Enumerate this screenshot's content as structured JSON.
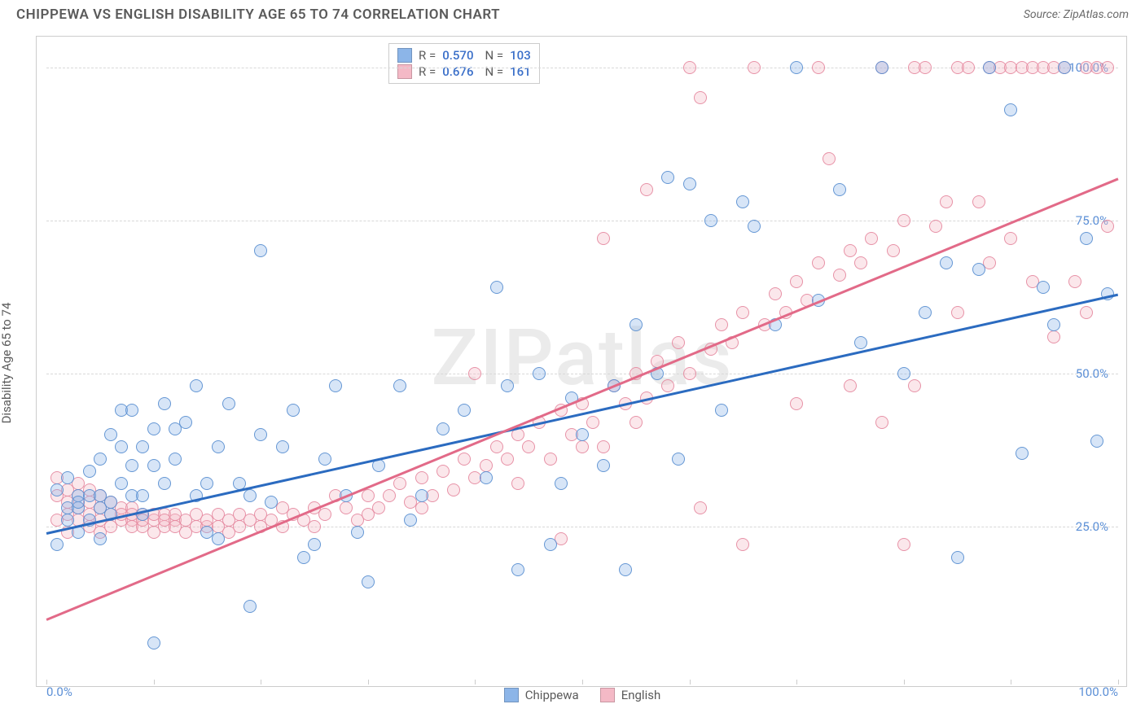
{
  "header": {
    "title": "CHIPPEWA VS ENGLISH DISABILITY AGE 65 TO 74 CORRELATION CHART",
    "source": "Source: ZipAtlas.com"
  },
  "watermark": "ZIPatlas",
  "chart": {
    "type": "scatter",
    "ylabel": "Disability Age 65 to 74",
    "background_color": "#ffffff",
    "border_color": "#cccccc",
    "grid_color": "#d8d8d8",
    "label_fontsize": 15,
    "title_fontsize": 17,
    "xlim": [
      0,
      100
    ],
    "ylim": [
      0,
      105
    ],
    "xtick_label_left": "0.0%",
    "xtick_label_right": "100.0%",
    "xtick_positions": [
      0,
      10,
      20,
      30,
      40,
      50,
      60,
      70,
      80,
      90,
      100
    ],
    "ytick_labels": [
      {
        "v": 25,
        "t": "25.0%"
      },
      {
        "v": 50,
        "t": "50.0%"
      },
      {
        "v": 75,
        "t": "75.0%"
      },
      {
        "v": 100,
        "t": "100.0%"
      }
    ],
    "marker_radius": 8,
    "marker_fill_opacity": 0.35,
    "marker_stroke_opacity": 0.9,
    "series": [
      {
        "name": "Chippewa",
        "color": "#8cb5e8",
        "stroke": "#5a8fd0",
        "R": "0.570",
        "N": "103",
        "trendline": {
          "x1": 0,
          "y1": 24,
          "x2": 100,
          "y2": 63,
          "color": "#2b6bc0",
          "width": 2.5
        },
        "points": [
          [
            1,
            22
          ],
          [
            1,
            31
          ],
          [
            2,
            26
          ],
          [
            2,
            33
          ],
          [
            2,
            28
          ],
          [
            3,
            24
          ],
          [
            3,
            30
          ],
          [
            3,
            28
          ],
          [
            3,
            29
          ],
          [
            4,
            30
          ],
          [
            4,
            26
          ],
          [
            4,
            34
          ],
          [
            5,
            30
          ],
          [
            5,
            23
          ],
          [
            5,
            28
          ],
          [
            5,
            36
          ],
          [
            6,
            27
          ],
          [
            6,
            29
          ],
          [
            6,
            40
          ],
          [
            7,
            44
          ],
          [
            7,
            32
          ],
          [
            7,
            38
          ],
          [
            8,
            30
          ],
          [
            8,
            35
          ],
          [
            8,
            44
          ],
          [
            9,
            38
          ],
          [
            9,
            30
          ],
          [
            9,
            27
          ],
          [
            10,
            35
          ],
          [
            10,
            41
          ],
          [
            10,
            6
          ],
          [
            11,
            32
          ],
          [
            11,
            45
          ],
          [
            12,
            36
          ],
          [
            12,
            41
          ],
          [
            13,
            42
          ],
          [
            14,
            30
          ],
          [
            14,
            48
          ],
          [
            15,
            32
          ],
          [
            15,
            24
          ],
          [
            16,
            38
          ],
          [
            16,
            23
          ],
          [
            17,
            45
          ],
          [
            18,
            32
          ],
          [
            19,
            12
          ],
          [
            19,
            30
          ],
          [
            20,
            70
          ],
          [
            20,
            40
          ],
          [
            21,
            29
          ],
          [
            22,
            38
          ],
          [
            23,
            44
          ],
          [
            24,
            20
          ],
          [
            25,
            22
          ],
          [
            26,
            36
          ],
          [
            27,
            48
          ],
          [
            28,
            30
          ],
          [
            29,
            24
          ],
          [
            30,
            16
          ],
          [
            31,
            35
          ],
          [
            33,
            48
          ],
          [
            34,
            26
          ],
          [
            35,
            30
          ],
          [
            37,
            41
          ],
          [
            39,
            44
          ],
          [
            41,
            33
          ],
          [
            42,
            64
          ],
          [
            43,
            48
          ],
          [
            44,
            18
          ],
          [
            46,
            50
          ],
          [
            47,
            22
          ],
          [
            48,
            32
          ],
          [
            49,
            46
          ],
          [
            50,
            40
          ],
          [
            52,
            35
          ],
          [
            53,
            48
          ],
          [
            54,
            18
          ],
          [
            55,
            58
          ],
          [
            57,
            50
          ],
          [
            58,
            82
          ],
          [
            59,
            36
          ],
          [
            60,
            81
          ],
          [
            62,
            75
          ],
          [
            63,
            44
          ],
          [
            65,
            78
          ],
          [
            66,
            74
          ],
          [
            68,
            58
          ],
          [
            70,
            100
          ],
          [
            72,
            62
          ],
          [
            74,
            80
          ],
          [
            76,
            55
          ],
          [
            78,
            100
          ],
          [
            80,
            50
          ],
          [
            82,
            60
          ],
          [
            84,
            68
          ],
          [
            85,
            20
          ],
          [
            87,
            67
          ],
          [
            88,
            100
          ],
          [
            90,
            93
          ],
          [
            91,
            37
          ],
          [
            93,
            64
          ],
          [
            94,
            58
          ],
          [
            95,
            100
          ],
          [
            97,
            72
          ],
          [
            98,
            39
          ],
          [
            99,
            63
          ]
        ]
      },
      {
        "name": "English",
        "color": "#f4b9c6",
        "stroke": "#e68aa0",
        "R": "0.676",
        "N": "161",
        "trendline": {
          "x1": 0,
          "y1": 10,
          "x2": 100,
          "y2": 82,
          "color": "#e26a88",
          "width": 2.5
        },
        "points": [
          [
            1,
            30
          ],
          [
            1,
            26
          ],
          [
            1,
            33
          ],
          [
            2,
            27
          ],
          [
            2,
            31
          ],
          [
            2,
            24
          ],
          [
            2,
            29
          ],
          [
            3,
            28
          ],
          [
            3,
            32
          ],
          [
            3,
            26
          ],
          [
            3,
            30
          ],
          [
            4,
            27
          ],
          [
            4,
            29
          ],
          [
            4,
            25
          ],
          [
            4,
            31
          ],
          [
            5,
            28
          ],
          [
            5,
            26
          ],
          [
            5,
            30
          ],
          [
            5,
            24
          ],
          [
            6,
            27
          ],
          [
            6,
            29
          ],
          [
            6,
            25
          ],
          [
            7,
            26
          ],
          [
            7,
            28
          ],
          [
            7,
            27
          ],
          [
            8,
            26
          ],
          [
            8,
            28
          ],
          [
            8,
            25
          ],
          [
            8,
            27
          ],
          [
            9,
            25
          ],
          [
            9,
            27
          ],
          [
            9,
            26
          ],
          [
            10,
            26
          ],
          [
            10,
            24
          ],
          [
            10,
            27
          ],
          [
            11,
            25
          ],
          [
            11,
            27
          ],
          [
            11,
            26
          ],
          [
            12,
            26
          ],
          [
            12,
            25
          ],
          [
            12,
            27
          ],
          [
            13,
            24
          ],
          [
            13,
            26
          ],
          [
            14,
            25
          ],
          [
            14,
            27
          ],
          [
            15,
            25
          ],
          [
            15,
            26
          ],
          [
            16,
            25
          ],
          [
            16,
            27
          ],
          [
            17,
            24
          ],
          [
            17,
            26
          ],
          [
            18,
            25
          ],
          [
            18,
            27
          ],
          [
            19,
            26
          ],
          [
            20,
            25
          ],
          [
            20,
            27
          ],
          [
            21,
            26
          ],
          [
            22,
            25
          ],
          [
            22,
            28
          ],
          [
            23,
            27
          ],
          [
            24,
            26
          ],
          [
            25,
            28
          ],
          [
            25,
            25
          ],
          [
            26,
            27
          ],
          [
            27,
            30
          ],
          [
            28,
            28
          ],
          [
            29,
            26
          ],
          [
            30,
            30
          ],
          [
            30,
            27
          ],
          [
            31,
            28
          ],
          [
            32,
            30
          ],
          [
            33,
            32
          ],
          [
            34,
            29
          ],
          [
            35,
            33
          ],
          [
            35,
            28
          ],
          [
            36,
            30
          ],
          [
            37,
            34
          ],
          [
            38,
            31
          ],
          [
            39,
            36
          ],
          [
            40,
            33
          ],
          [
            40,
            50
          ],
          [
            41,
            35
          ],
          [
            42,
            38
          ],
          [
            43,
            36
          ],
          [
            44,
            40
          ],
          [
            44,
            32
          ],
          [
            45,
            38
          ],
          [
            46,
            42
          ],
          [
            47,
            36
          ],
          [
            48,
            44
          ],
          [
            48,
            23
          ],
          [
            49,
            40
          ],
          [
            50,
            45
          ],
          [
            50,
            38
          ],
          [
            51,
            42
          ],
          [
            52,
            72
          ],
          [
            52,
            38
          ],
          [
            53,
            48
          ],
          [
            54,
            45
          ],
          [
            55,
            50
          ],
          [
            55,
            42
          ],
          [
            56,
            80
          ],
          [
            56,
            46
          ],
          [
            57,
            52
          ],
          [
            58,
            48
          ],
          [
            59,
            55
          ],
          [
            60,
            50
          ],
          [
            60,
            100
          ],
          [
            61,
            95
          ],
          [
            61,
            28
          ],
          [
            62,
            54
          ],
          [
            63,
            58
          ],
          [
            64,
            55
          ],
          [
            65,
            60
          ],
          [
            65,
            22
          ],
          [
            66,
            100
          ],
          [
            67,
            58
          ],
          [
            68,
            63
          ],
          [
            69,
            60
          ],
          [
            70,
            65
          ],
          [
            70,
            45
          ],
          [
            71,
            62
          ],
          [
            72,
            68
          ],
          [
            72,
            100
          ],
          [
            73,
            85
          ],
          [
            74,
            66
          ],
          [
            75,
            70
          ],
          [
            75,
            48
          ],
          [
            76,
            68
          ],
          [
            77,
            72
          ],
          [
            78,
            100
          ],
          [
            78,
            42
          ],
          [
            79,
            70
          ],
          [
            80,
            75
          ],
          [
            80,
            22
          ],
          [
            81,
            100
          ],
          [
            81,
            48
          ],
          [
            82,
            100
          ],
          [
            83,
            74
          ],
          [
            84,
            78
          ],
          [
            85,
            100
          ],
          [
            85,
            60
          ],
          [
            86,
            100
          ],
          [
            87,
            78
          ],
          [
            88,
            100
          ],
          [
            88,
            68
          ],
          [
            89,
            100
          ],
          [
            90,
            100
          ],
          [
            90,
            72
          ],
          [
            91,
            100
          ],
          [
            92,
            100
          ],
          [
            92,
            65
          ],
          [
            93,
            100
          ],
          [
            94,
            100
          ],
          [
            94,
            56
          ],
          [
            95,
            100
          ],
          [
            96,
            65
          ],
          [
            97,
            100
          ],
          [
            97,
            60
          ],
          [
            98,
            100
          ],
          [
            99,
            74
          ],
          [
            99,
            100
          ]
        ]
      }
    ],
    "legend_bottom": [
      {
        "label": "Chippewa",
        "swatch": "#8cb5e8"
      },
      {
        "label": "English",
        "swatch": "#f4b9c6"
      }
    ],
    "legend_stats_label_R": "R =",
    "legend_stats_label_N": "N ="
  }
}
